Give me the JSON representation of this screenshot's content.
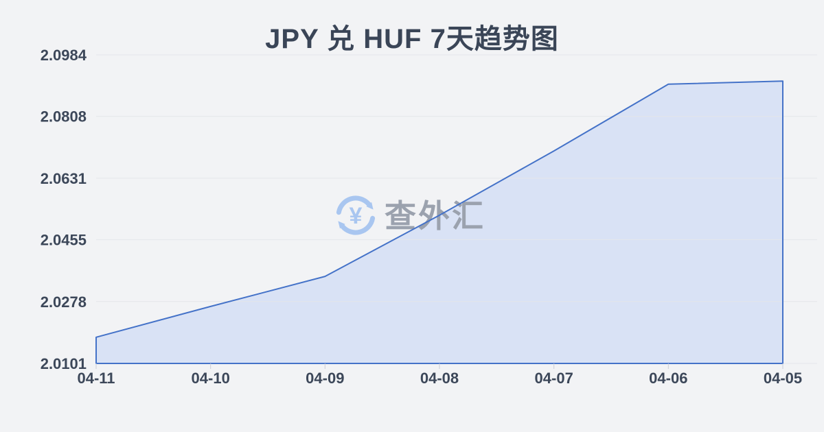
{
  "page": {
    "title": "JPY 兑 HUF 7天趋势图"
  },
  "watermark": {
    "text": "查外汇",
    "icon": "currency-exchange-icon",
    "icon_symbol": "¥"
  },
  "chart_data": {
    "type": "area",
    "title": "JPY 兑 HUF 7天趋势图",
    "categories": [
      "04-11",
      "04-10",
      "04-09",
      "04-08",
      "04-07",
      "04-06",
      "04-05"
    ],
    "series": [
      {
        "name": "JPY/HUF",
        "values": [
          2.0176,
          2.0264,
          2.035,
          2.0525,
          2.0709,
          2.09,
          2.0909
        ]
      }
    ],
    "y_tick_labels": [
      "2.0984",
      "2.0808",
      "2.0631",
      "2.0455",
      "2.0278",
      "2.0101"
    ],
    "ylim": [
      2.0101,
      2.0984
    ],
    "xlabel": "",
    "ylabel": "",
    "grid": "horizontal",
    "legend": "none",
    "colors": {
      "line": "#4472c8",
      "fill": "#d9e2f5",
      "grid": "#e4e6ea",
      "axis_text": "#3c4759",
      "tick": "#c9cdd6",
      "background": "#f2f3f5",
      "watermark_text": "#9ba2ae",
      "watermark_icon": "#a9c6f0"
    }
  }
}
